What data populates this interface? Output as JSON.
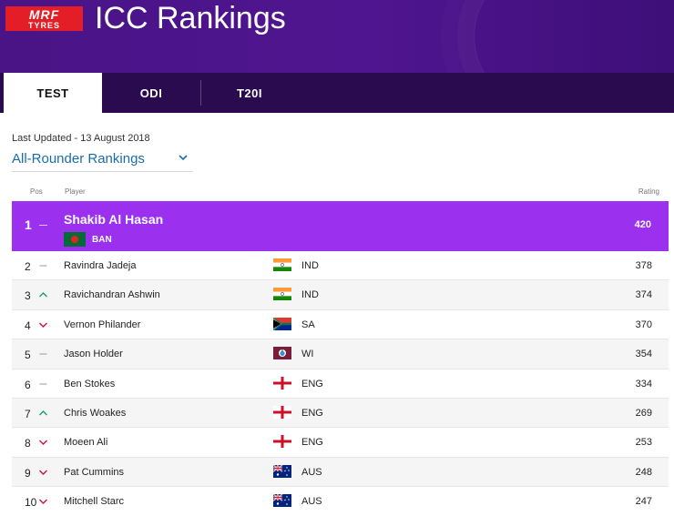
{
  "header": {
    "brand_top": "MRF",
    "brand_bottom": "TYRES",
    "title": "ICC Rankings"
  },
  "tabs": [
    {
      "label": "TEST",
      "active": true
    },
    {
      "label": "ODI",
      "active": false
    },
    {
      "label": "T20I",
      "active": false
    }
  ],
  "meta": {
    "last_updated": "Last Updated - 13 August 2018",
    "ranking_type": "All-Rounder Rankings"
  },
  "columns": {
    "pos": "Pos",
    "player": "Player",
    "rating": "Rating"
  },
  "top": {
    "pos": "1",
    "name": "Shakib Al Hasan",
    "team": "BAN",
    "rating": "420",
    "movement": "same"
  },
  "rows": [
    {
      "pos": "2",
      "name": "Ravindra Jadeja",
      "team": "IND",
      "rating": "378",
      "movement": "same"
    },
    {
      "pos": "3",
      "name": "Ravichandran Ashwin",
      "team": "IND",
      "rating": "374",
      "movement": "up"
    },
    {
      "pos": "4",
      "name": "Vernon Philander",
      "team": "SA",
      "rating": "370",
      "movement": "down"
    },
    {
      "pos": "5",
      "name": "Jason Holder",
      "team": "WI",
      "rating": "354",
      "movement": "same"
    },
    {
      "pos": "6",
      "name": "Ben Stokes",
      "team": "ENG",
      "rating": "334",
      "movement": "same"
    },
    {
      "pos": "7",
      "name": "Chris Woakes",
      "team": "ENG",
      "rating": "269",
      "movement": "up"
    },
    {
      "pos": "8",
      "name": "Moeen Ali",
      "team": "ENG",
      "rating": "253",
      "movement": "down"
    },
    {
      "pos": "9",
      "name": "Pat Cummins",
      "team": "AUS",
      "rating": "248",
      "movement": "down"
    },
    {
      "pos": "10",
      "name": "Mitchell Starc",
      "team": "AUS",
      "rating": "247",
      "movement": "down"
    }
  ],
  "colors": {
    "header": "#4a1486",
    "tabbar": "#2a0b4f",
    "highlight": "#9b30ef",
    "link": "#1c6ca8",
    "up": "#1a9e6a",
    "down": "#d0103a"
  }
}
